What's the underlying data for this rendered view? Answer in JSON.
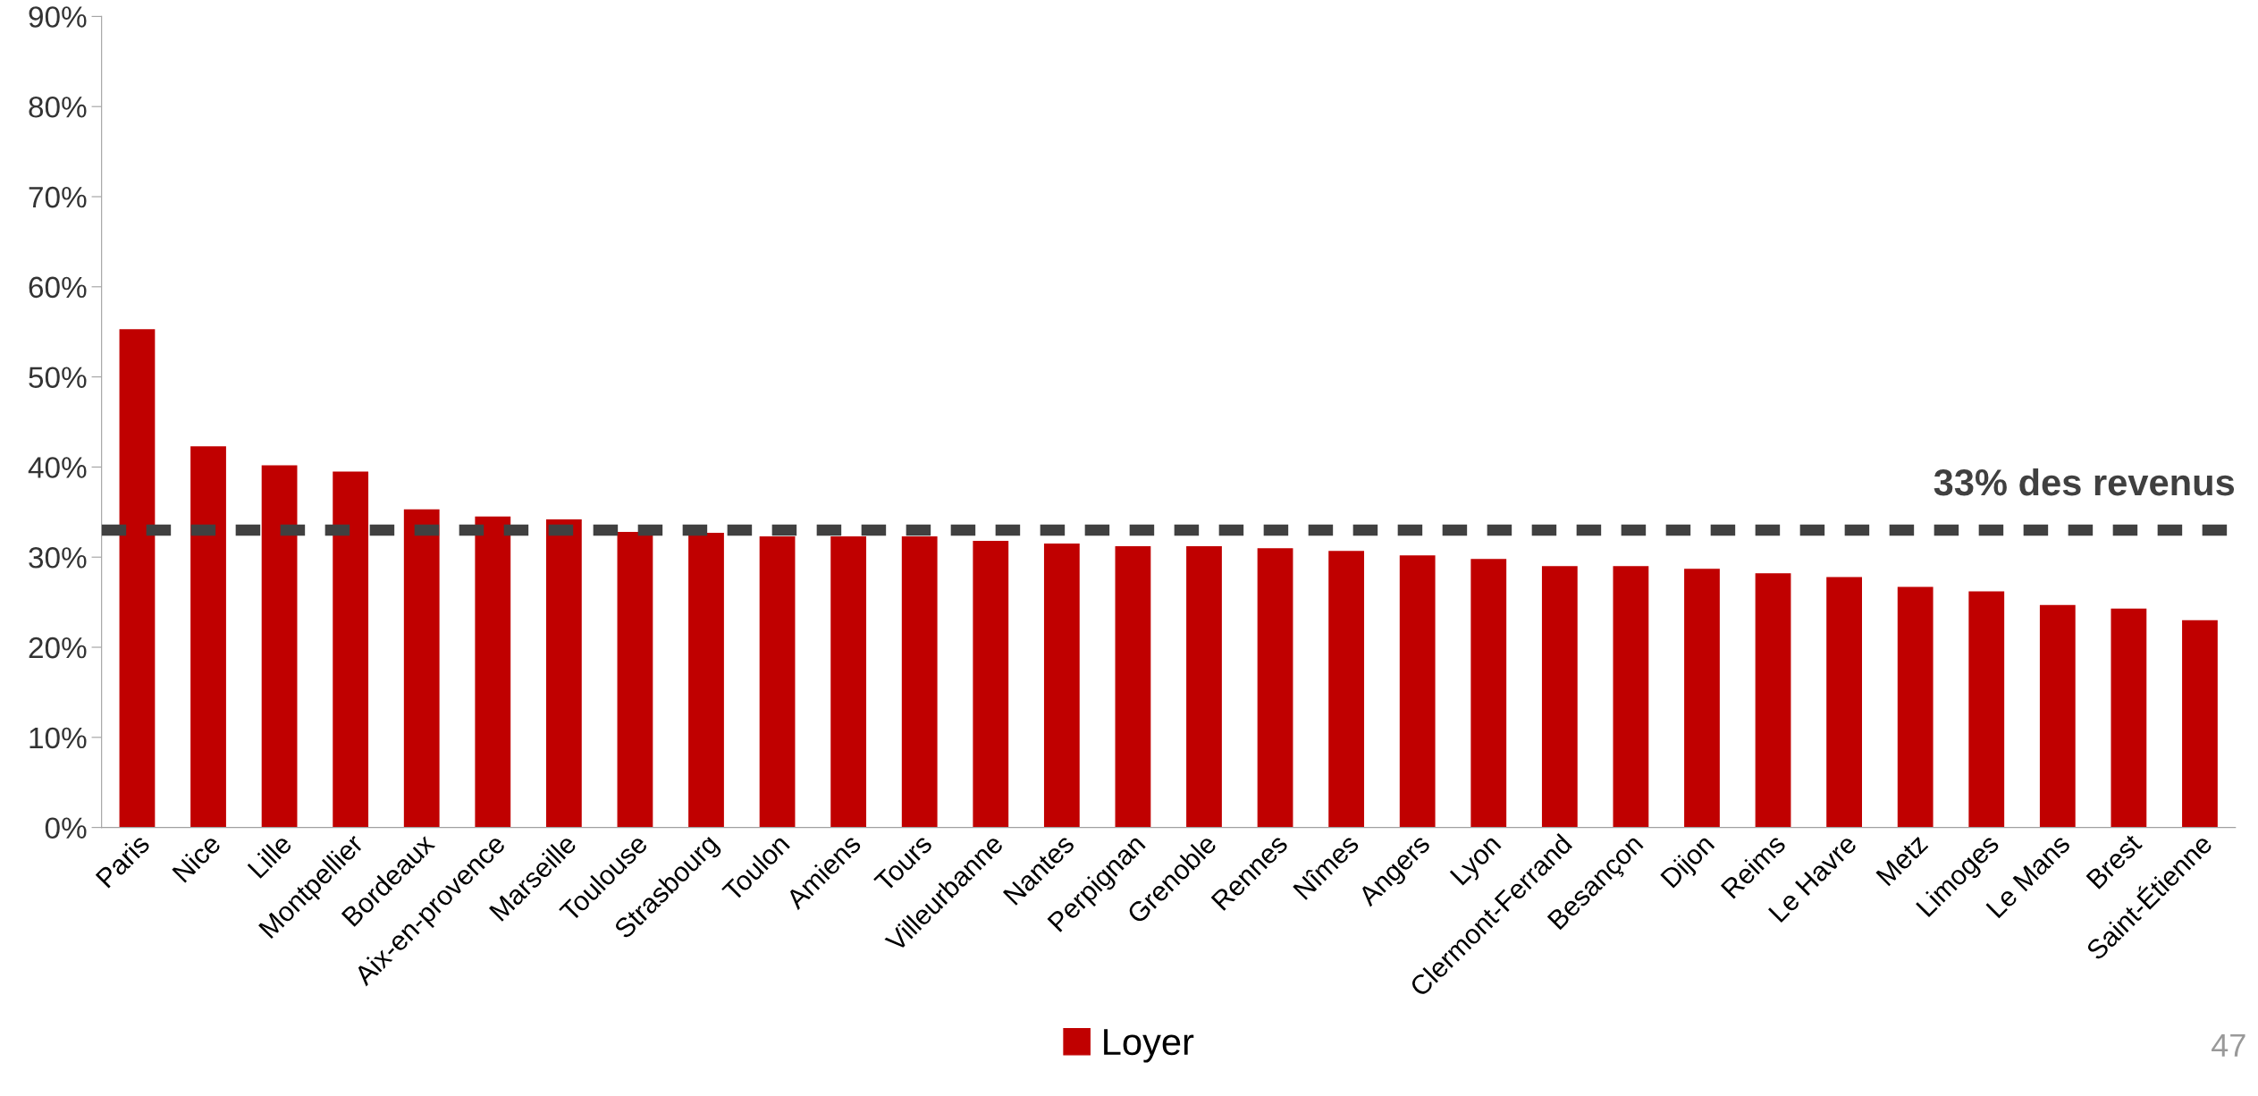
{
  "chart_data": {
    "type": "bar",
    "categories": [
      "Paris",
      "Nice",
      "Lille",
      "Montpellier",
      "Bordeaux",
      "Aix-en-provence",
      "Marseille",
      "Toulouse",
      "Strasbourg",
      "Toulon",
      "Amiens",
      "Tours",
      "Villeurbanne",
      "Nantes",
      "Perpignan",
      "Grenoble",
      "Rennes",
      "Nîmes",
      "Angers",
      "Lyon",
      "Clermont-Ferrand",
      "Besançon",
      "Dijon",
      "Reims",
      "Le Havre",
      "Metz",
      "Limoges",
      "Le Mans",
      "Brest",
      "Saint-Étienne"
    ],
    "series": [
      {
        "name": "Loyer",
        "color": "#c00000",
        "values": [
          55.3,
          42.3,
          40.2,
          39.5,
          35.3,
          34.5,
          34.2,
          32.8,
          32.7,
          32.3,
          32.3,
          32.3,
          31.8,
          31.5,
          31.2,
          31.2,
          31.0,
          30.7,
          30.2,
          29.8,
          29.0,
          29.0,
          28.7,
          28.2,
          27.8,
          26.7,
          26.2,
          24.7,
          24.3,
          23.0
        ]
      }
    ],
    "ylim": [
      0,
      90
    ],
    "yticks": [
      {
        "value": 0,
        "label": "0%"
      },
      {
        "value": 10,
        "label": "10%"
      },
      {
        "value": 20,
        "label": "20%"
      },
      {
        "value": 30,
        "label": "30%"
      },
      {
        "value": 40,
        "label": "40%"
      },
      {
        "value": 50,
        "label": "50%"
      },
      {
        "value": 60,
        "label": "60%"
      },
      {
        "value": 70,
        "label": "70%"
      },
      {
        "value": 80,
        "label": "80%"
      },
      {
        "value": 90,
        "label": "90%"
      }
    ],
    "ref_lines": [
      {
        "axis": "y",
        "value": 33,
        "label": "33% des revenus",
        "color": "#404040",
        "line_style": "dashed"
      }
    ],
    "annotations": [
      "47"
    ],
    "legend": "bottom",
    "grid": false
  }
}
